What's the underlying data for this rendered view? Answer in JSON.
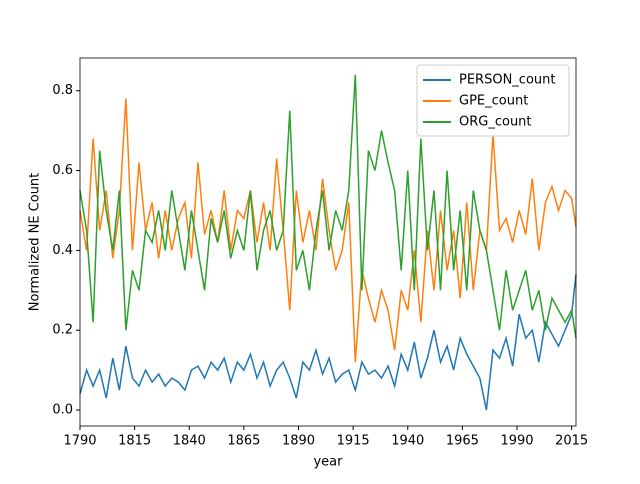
{
  "chart_data": {
    "type": "line",
    "xlabel": "year",
    "ylabel": "Normalized NE Count",
    "x": [
      1790,
      1793,
      1796,
      1799,
      1802,
      1805,
      1808,
      1811,
      1814,
      1817,
      1820,
      1823,
      1826,
      1829,
      1832,
      1835,
      1838,
      1841,
      1844,
      1847,
      1850,
      1853,
      1856,
      1859,
      1862,
      1865,
      1868,
      1871,
      1874,
      1877,
      1880,
      1883,
      1886,
      1889,
      1892,
      1895,
      1898,
      1901,
      1904,
      1907,
      1910,
      1913,
      1916,
      1919,
      1922,
      1925,
      1928,
      1931,
      1934,
      1937,
      1940,
      1943,
      1946,
      1949,
      1952,
      1955,
      1958,
      1961,
      1964,
      1967,
      1970,
      1973,
      1976,
      1979,
      1982,
      1985,
      1988,
      1991,
      1994,
      1997,
      2000,
      2003,
      2006,
      2009,
      2012,
      2015,
      2017
    ],
    "series": [
      {
        "name": "PERSON_count",
        "color": "#1f77b4",
        "values": [
          0.04,
          0.1,
          0.06,
          0.1,
          0.03,
          0.13,
          0.05,
          0.16,
          0.08,
          0.06,
          0.1,
          0.07,
          0.09,
          0.06,
          0.08,
          0.07,
          0.05,
          0.1,
          0.11,
          0.08,
          0.12,
          0.1,
          0.13,
          0.07,
          0.12,
          0.1,
          0.14,
          0.08,
          0.12,
          0.06,
          0.1,
          0.12,
          0.08,
          0.03,
          0.12,
          0.1,
          0.15,
          0.09,
          0.13,
          0.07,
          0.09,
          0.1,
          0.05,
          0.12,
          0.09,
          0.1,
          0.08,
          0.11,
          0.06,
          0.14,
          0.1,
          0.17,
          0.08,
          0.13,
          0.2,
          0.12,
          0.16,
          0.1,
          0.18,
          0.14,
          0.11,
          0.08,
          0.0,
          0.15,
          0.13,
          0.18,
          0.11,
          0.24,
          0.18,
          0.2,
          0.12,
          0.22,
          0.19,
          0.16,
          0.2,
          0.24,
          0.34
        ]
      },
      {
        "name": "GPE_count",
        "color": "#ff7f0e",
        "values": [
          0.5,
          0.4,
          0.68,
          0.45,
          0.55,
          0.38,
          0.5,
          0.78,
          0.4,
          0.62,
          0.45,
          0.52,
          0.38,
          0.5,
          0.4,
          0.48,
          0.52,
          0.38,
          0.62,
          0.44,
          0.5,
          0.42,
          0.55,
          0.4,
          0.5,
          0.48,
          0.55,
          0.42,
          0.52,
          0.4,
          0.63,
          0.45,
          0.25,
          0.55,
          0.42,
          0.5,
          0.4,
          0.58,
          0.45,
          0.35,
          0.4,
          0.52,
          0.12,
          0.35,
          0.28,
          0.22,
          0.3,
          0.25,
          0.15,
          0.3,
          0.25,
          0.4,
          0.22,
          0.45,
          0.3,
          0.5,
          0.35,
          0.45,
          0.28,
          0.52,
          0.3,
          0.45,
          0.4,
          0.69,
          0.45,
          0.48,
          0.42,
          0.5,
          0.44,
          0.58,
          0.4,
          0.52,
          0.56,
          0.5,
          0.55,
          0.53,
          0.46
        ]
      },
      {
        "name": "ORG_count",
        "color": "#2ca02c",
        "values": [
          0.55,
          0.45,
          0.22,
          0.65,
          0.5,
          0.4,
          0.55,
          0.2,
          0.35,
          0.3,
          0.45,
          0.42,
          0.5,
          0.4,
          0.55,
          0.45,
          0.35,
          0.5,
          0.4,
          0.3,
          0.48,
          0.42,
          0.5,
          0.38,
          0.45,
          0.4,
          0.55,
          0.35,
          0.45,
          0.5,
          0.4,
          0.45,
          0.75,
          0.35,
          0.4,
          0.3,
          0.45,
          0.55,
          0.4,
          0.5,
          0.45,
          0.55,
          0.84,
          0.3,
          0.65,
          0.6,
          0.7,
          0.62,
          0.55,
          0.35,
          0.6,
          0.3,
          0.68,
          0.4,
          0.55,
          0.3,
          0.6,
          0.35,
          0.5,
          0.3,
          0.55,
          0.45,
          0.4,
          0.3,
          0.2,
          0.35,
          0.25,
          0.3,
          0.35,
          0.25,
          0.3,
          0.2,
          0.28,
          0.25,
          0.22,
          0.25,
          0.18
        ]
      }
    ],
    "xlim": [
      1790,
      2017
    ],
    "ylim": [
      -0.04,
      0.882
    ],
    "xticks": [
      1790,
      1815,
      1840,
      1865,
      1890,
      1915,
      1940,
      1965,
      1990,
      2015
    ],
    "yticks": [
      {
        "value": 0,
        "label": "0.0"
      },
      0.2,
      0.4,
      0.6,
      0.8
    ],
    "legend": "upper right",
    "grid": false
  }
}
